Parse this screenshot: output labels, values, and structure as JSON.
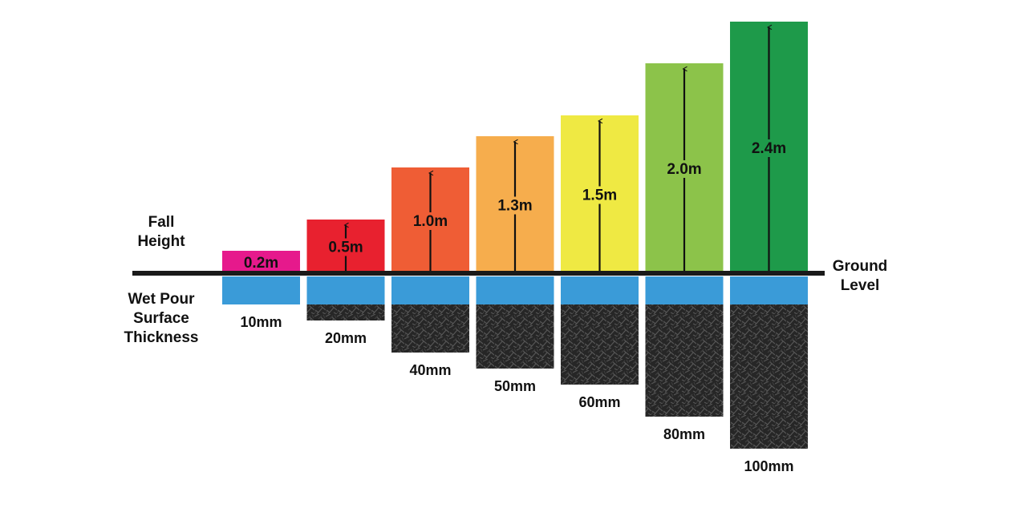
{
  "labels": {
    "fall_height": [
      "Fall",
      "Height"
    ],
    "surface_thickness": [
      "Wet Pour",
      "Surface",
      "Thickness"
    ],
    "ground_level": [
      "Ground",
      "Level"
    ]
  },
  "colors": {
    "ground_line": "#1a1a1a",
    "wet_pour": "#3a9bd8",
    "rubber_base": "#2b2b2b",
    "arrow": "#111111"
  },
  "chart_data": {
    "type": "bar",
    "categories": [
      "10mm",
      "20mm",
      "40mm",
      "50mm",
      "60mm",
      "80mm",
      "100mm"
    ],
    "series": [
      {
        "values": [
          0.2,
          0.5,
          1.0,
          1.3,
          1.5,
          2.0,
          2.4
        ],
        "labels": [
          "0.2m",
          "0.5m",
          "1.0m",
          "1.3m",
          "1.5m",
          "2.0m",
          "2.4m"
        ]
      },
      {
        "values": [
          10,
          20,
          40,
          50,
          60,
          80,
          100
        ],
        "labels": [
          "10mm",
          "20mm",
          "40mm",
          "50mm",
          "60mm",
          "80mm",
          "100mm"
        ]
      }
    ],
    "bar_colors": [
      "#e6198c",
      "#e8212f",
      "#ef5d35",
      "#f6ad4d",
      "#efe943",
      "#8cc34a",
      "#1e9a4a"
    ]
  }
}
